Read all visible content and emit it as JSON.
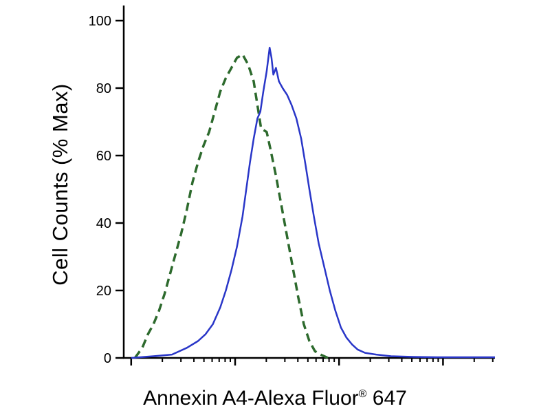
{
  "figure": {
    "background": "#ffffff",
    "xlabel_main": "Annexin A4-Alexa Fluor",
    "xlabel_reg": "®",
    "xlabel_suffix": " 647"
  },
  "chart_data": {
    "type": "line",
    "subtype": "flow-cytometry-histogram-overlay",
    "title": "",
    "xlabel": "Annexin A4-Alexa Fluor® 647",
    "ylabel": "Cell Counts (% Max)",
    "ylim": [
      0,
      100
    ],
    "yticks": [
      0,
      20,
      40,
      60,
      80,
      100
    ],
    "x_axis": {
      "scale": "log",
      "tick_labels": "none"
    },
    "grid": false,
    "legend": "none",
    "axis_color": "#000000",
    "xticks": {
      "major": [
        0.02,
        0.3,
        0.58,
        0.86
      ],
      "minor": [
        0.104,
        0.154,
        0.189,
        0.216,
        0.238,
        0.257,
        0.273,
        0.287,
        0.384,
        0.434,
        0.469,
        0.496,
        0.518,
        0.537,
        0.553,
        0.567,
        0.664,
        0.714,
        0.749,
        0.776,
        0.798,
        0.817,
        0.833,
        0.847,
        0.944,
        0.994
      ]
    },
    "series": [
      {
        "name": "dashed-green-curve",
        "color": "#2d6a2d",
        "style": "dashed",
        "width": 3.5,
        "points": [
          [
            0.03,
            0
          ],
          [
            0.05,
            3
          ],
          [
            0.065,
            7
          ],
          [
            0.08,
            10
          ],
          [
            0.095,
            14
          ],
          [
            0.11,
            19
          ],
          [
            0.125,
            25
          ],
          [
            0.14,
            31
          ],
          [
            0.155,
            37
          ],
          [
            0.17,
            44
          ],
          [
            0.185,
            52
          ],
          [
            0.2,
            58
          ],
          [
            0.215,
            63
          ],
          [
            0.23,
            67
          ],
          [
            0.245,
            73
          ],
          [
            0.26,
            79
          ],
          [
            0.275,
            83
          ],
          [
            0.29,
            86
          ],
          [
            0.305,
            89
          ],
          [
            0.32,
            90
          ],
          [
            0.335,
            87
          ],
          [
            0.35,
            82
          ],
          [
            0.36,
            75
          ],
          [
            0.37,
            68
          ],
          [
            0.385,
            67
          ],
          [
            0.395,
            62
          ],
          [
            0.41,
            54
          ],
          [
            0.425,
            45
          ],
          [
            0.44,
            36
          ],
          [
            0.455,
            27
          ],
          [
            0.47,
            18
          ],
          [
            0.485,
            10
          ],
          [
            0.5,
            5
          ],
          [
            0.515,
            2
          ],
          [
            0.53,
            1
          ],
          [
            0.55,
            0
          ]
        ]
      },
      {
        "name": "solid-blue-curve",
        "color": "#2936c8",
        "style": "solid",
        "width": 2.5,
        "points": [
          [
            0.02,
            0
          ],
          [
            0.08,
            0.5
          ],
          [
            0.13,
            1
          ],
          [
            0.17,
            3
          ],
          [
            0.2,
            5
          ],
          [
            0.22,
            7
          ],
          [
            0.24,
            10
          ],
          [
            0.26,
            15
          ],
          [
            0.275,
            20
          ],
          [
            0.29,
            26
          ],
          [
            0.305,
            33
          ],
          [
            0.32,
            42
          ],
          [
            0.33,
            50
          ],
          [
            0.34,
            58
          ],
          [
            0.35,
            65
          ],
          [
            0.36,
            71
          ],
          [
            0.368,
            73
          ],
          [
            0.376,
            79
          ],
          [
            0.385,
            85
          ],
          [
            0.393,
            92
          ],
          [
            0.398,
            89
          ],
          [
            0.403,
            84
          ],
          [
            0.41,
            86
          ],
          [
            0.418,
            82
          ],
          [
            0.428,
            80
          ],
          [
            0.44,
            78
          ],
          [
            0.452,
            75
          ],
          [
            0.465,
            71
          ],
          [
            0.478,
            65
          ],
          [
            0.49,
            57
          ],
          [
            0.5,
            50
          ],
          [
            0.512,
            42
          ],
          [
            0.525,
            34
          ],
          [
            0.54,
            27
          ],
          [
            0.555,
            20
          ],
          [
            0.57,
            14
          ],
          [
            0.585,
            9
          ],
          [
            0.6,
            6
          ],
          [
            0.615,
            4
          ],
          [
            0.63,
            2.5
          ],
          [
            0.65,
            1.5
          ],
          [
            0.68,
            1
          ],
          [
            0.72,
            0.5
          ],
          [
            0.78,
            0.3
          ],
          [
            0.85,
            0.2
          ],
          [
            1.0,
            0.2
          ]
        ]
      }
    ]
  }
}
